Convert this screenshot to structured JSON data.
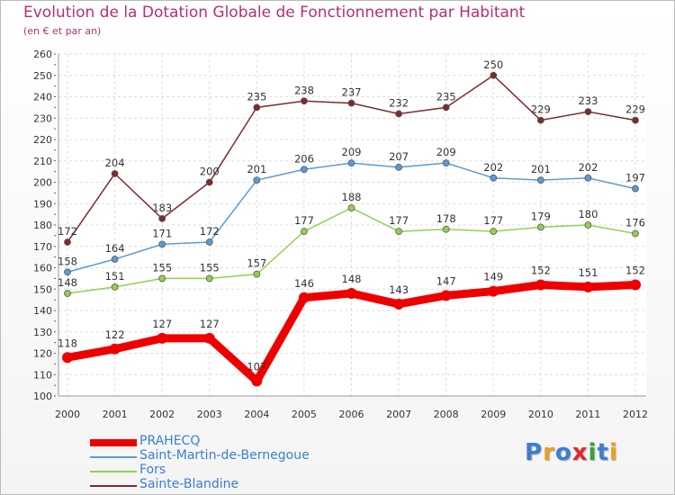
{
  "title": "Evolution de la Dotation Globale de Fonctionnement par Habitant",
  "subtitle": "(en € et par an)",
  "logo_text": "Proxiti",
  "chart_data": {
    "type": "line",
    "title": "Evolution de la Dotation Globale de Fonctionnement par Habitant",
    "subtitle": "(en € et par an)",
    "xlabel": "",
    "ylabel": "",
    "categories": [
      "2000",
      "2001",
      "2002",
      "2003",
      "2004",
      "2005",
      "2006",
      "2007",
      "2008",
      "2009",
      "2010",
      "2011",
      "2012"
    ],
    "ylim": [
      100,
      260
    ],
    "yticks": [
      100,
      110,
      120,
      130,
      140,
      150,
      160,
      170,
      180,
      190,
      200,
      210,
      220,
      230,
      240,
      250,
      260
    ],
    "grid": true,
    "legend_position": "bottom-left",
    "series": [
      {
        "name": "PRAHECQ",
        "color": "#ee0000",
        "values": [
          118,
          122,
          127,
          127,
          107,
          146,
          148,
          143,
          147,
          149,
          152,
          151,
          152
        ]
      },
      {
        "name": "Saint-Martin-de-Bernegoue",
        "color": "#5b9bd5",
        "values": [
          158,
          164,
          171,
          172,
          201,
          206,
          209,
          207,
          209,
          202,
          201,
          202,
          197
        ]
      },
      {
        "name": "Fors",
        "color": "#92d050",
        "values": [
          148,
          151,
          155,
          155,
          157,
          177,
          188,
          177,
          178,
          177,
          179,
          180,
          176
        ]
      },
      {
        "name": "Sainte-Blandine",
        "color": "#7b2c2c",
        "values": [
          172,
          204,
          183,
          200,
          235,
          238,
          237,
          232,
          235,
          250,
          229,
          233,
          229
        ]
      }
    ]
  }
}
